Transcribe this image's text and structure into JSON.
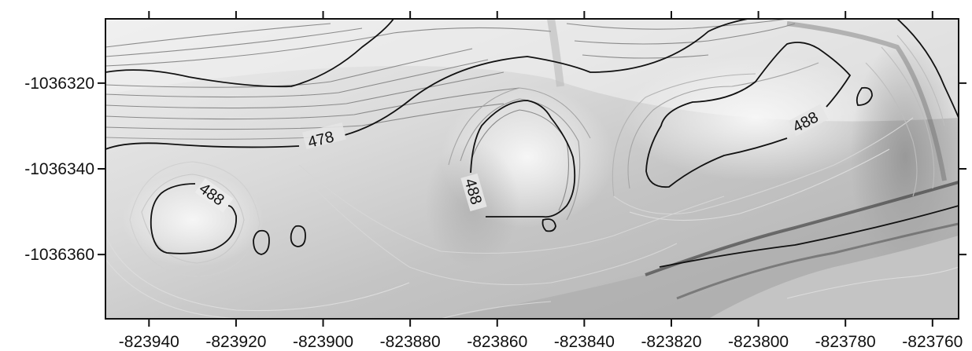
{
  "map": {
    "x_ticks": [
      "-823940",
      "-823920",
      "-823900",
      "-823880",
      "-823860",
      "-823840",
      "-823820",
      "-823800",
      "-823780",
      "-823760"
    ],
    "y_ticks": [
      "-1036320",
      "-1036340",
      "-1036360"
    ],
    "x_range": [
      -823950,
      -823754
    ],
    "y_range": [
      -1036375,
      -1036305
    ],
    "contour_labels": [
      {
        "text": "478"
      },
      {
        "text": "488"
      },
      {
        "text": "488"
      },
      {
        "text": "488"
      }
    ],
    "colors": {
      "index_contour": "#111111",
      "minor_contour_dark": "#8a8a8a",
      "minor_contour_light": "#d6d6d6",
      "relief_light": "#f2f2f2",
      "relief_dark": "#9a9a9a"
    }
  }
}
